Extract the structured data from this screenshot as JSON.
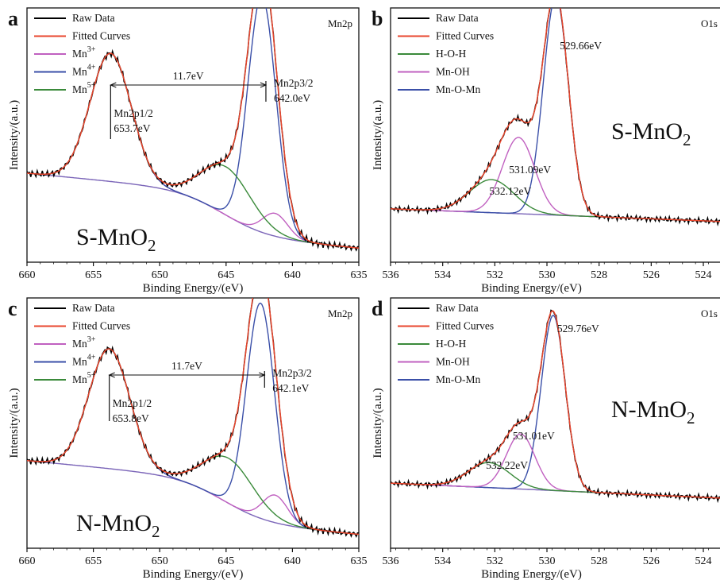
{
  "chart_data": [
    {
      "panel": "a",
      "type": "line",
      "corner_label": "Mn2p",
      "sample": "S-MnO",
      "sample_sub": "2",
      "xlabel": "Binding Energy/(eV)",
      "ylabel": "Intensity/(a.u.)",
      "xlim": [
        660,
        635
      ],
      "xticks": [
        "660",
        "655",
        "650",
        "645",
        "640",
        "635"
      ],
      "legend": [
        {
          "name": "Raw Data",
          "color": "#000000"
        },
        {
          "name": "Fitted Curves",
          "color": "#e8452c"
        },
        {
          "name": "Mn",
          "sup": "3+",
          "color": "#c060c0"
        },
        {
          "name": "Mn",
          "sup": "4+",
          "color": "#3a4fa8"
        },
        {
          "name": "Mn",
          "sup": "5+",
          "color": "#3a8a3a"
        }
      ],
      "annotations": [
        {
          "line1": "Mn2p1/2",
          "line2": "653.7eV"
        },
        {
          "line1": "Mn2p3/2",
          "line2": "642.0eV"
        }
      ],
      "splitting": "11.7eV",
      "peaks": [
        {
          "name": "Mn2p1/2",
          "x": 653.7
        },
        {
          "name": "Mn2p3/2",
          "x": 642.0
        },
        {
          "name": "Mn3+",
          "x": 641.3
        },
        {
          "name": "Mn4+",
          "x": 642.3
        },
        {
          "name": "Mn5+",
          "x": 645.0
        }
      ]
    },
    {
      "panel": "b",
      "type": "line",
      "corner_label": "O1s",
      "sample": "S-MnO",
      "sample_sub": "2",
      "xlabel": "Binding Energy/(eV)",
      "ylabel": "Intensity/(a.u.)",
      "xlim": [
        536,
        523.3
      ],
      "xticks": [
        "536",
        "534",
        "532",
        "530",
        "528",
        "526",
        "524"
      ],
      "legend": [
        {
          "name": "Raw Data",
          "color": "#000000"
        },
        {
          "name": "Fitted Curves",
          "color": "#e8452c"
        },
        {
          "name": "H-O-H",
          "color": "#3a8a3a"
        },
        {
          "name": "Mn-OH",
          "color": "#c060c0"
        },
        {
          "name": "Mn-O-Mn",
          "color": "#3a4fa8"
        }
      ],
      "annotations": [
        "529.66eV",
        "531.09eV",
        "532.12eV"
      ],
      "peaks": [
        {
          "name": "Mn-O-Mn",
          "x": 529.66
        },
        {
          "name": "Mn-OH",
          "x": 531.09
        },
        {
          "name": "H-O-H",
          "x": 532.12
        }
      ]
    },
    {
      "panel": "c",
      "type": "line",
      "corner_label": "Mn2p",
      "sample": "N-MnO",
      "sample_sub": "2",
      "xlabel": "Binding Energy/(eV)",
      "ylabel": "Intensity/(a.u.)",
      "xlim": [
        660,
        635
      ],
      "xticks": [
        "660",
        "655",
        "650",
        "645",
        "640",
        "635"
      ],
      "legend": [
        {
          "name": "Raw Data",
          "color": "#000000"
        },
        {
          "name": "Fitted Curves",
          "color": "#e8452c"
        },
        {
          "name": "Mn",
          "sup": "3+",
          "color": "#c060c0"
        },
        {
          "name": "Mn",
          "sup": "4+",
          "color": "#3a4fa8"
        },
        {
          "name": "Mn",
          "sup": "5+",
          "color": "#3a8a3a"
        }
      ],
      "annotations": [
        {
          "line1": "Mn2p1/2",
          "line2": "653.8eV"
        },
        {
          "line1": "Mn2p3/2",
          "line2": "642.1eV"
        }
      ],
      "splitting": "11.7eV",
      "peaks": [
        {
          "name": "Mn2p1/2",
          "x": 653.8
        },
        {
          "name": "Mn2p3/2",
          "x": 642.1
        },
        {
          "name": "Mn3+",
          "x": 641.3
        },
        {
          "name": "Mn4+",
          "x": 642.4
        },
        {
          "name": "Mn5+",
          "x": 644.8
        }
      ]
    },
    {
      "panel": "d",
      "type": "line",
      "corner_label": "O1s",
      "sample": "N-MnO",
      "sample_sub": "2",
      "xlabel": "Binding Energy/(eV)",
      "ylabel": "Intensity/(a.u.)",
      "xlim": [
        536,
        523.3
      ],
      "xticks": [
        "536",
        "534",
        "532",
        "530",
        "528",
        "526",
        "524"
      ],
      "legend": [
        {
          "name": "Raw Data",
          "color": "#000000"
        },
        {
          "name": "Fitted Curves",
          "color": "#e8452c"
        },
        {
          "name": "H-O-H",
          "color": "#3a8a3a"
        },
        {
          "name": "Mn-OH",
          "color": "#c060c0"
        },
        {
          "name": "Mn-O-Mn",
          "color": "#3a4fa8"
        }
      ],
      "annotations": [
        "529.76eV",
        "531.01eV",
        "532.22eV"
      ],
      "peaks": [
        {
          "name": "Mn-O-Mn",
          "x": 529.76
        },
        {
          "name": "Mn-OH",
          "x": 531.01
        },
        {
          "name": "H-O-H",
          "x": 532.22
        }
      ]
    }
  ]
}
